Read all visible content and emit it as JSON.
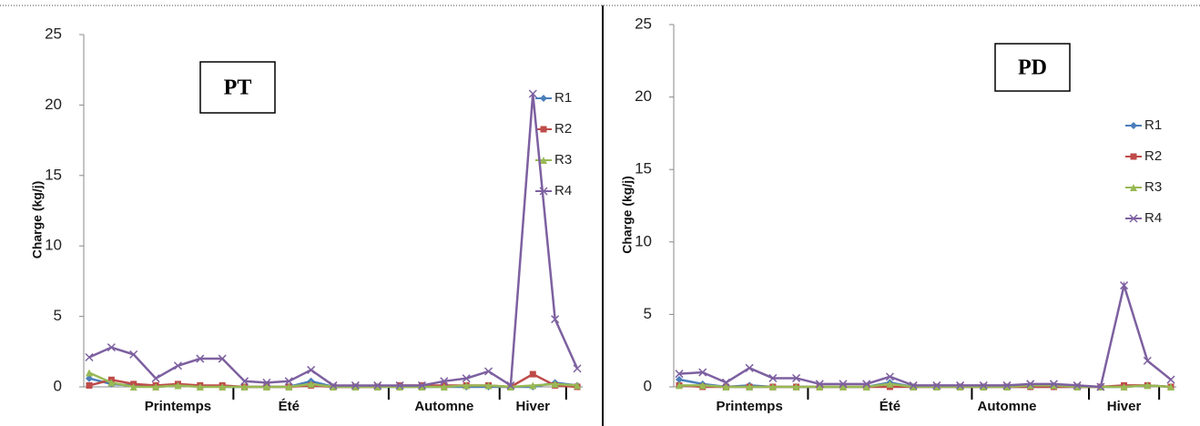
{
  "chart_data": [
    {
      "type": "line",
      "box_label": "PT",
      "y_label": "Charge (kg/j)",
      "categories": [
        null,
        null,
        null,
        null,
        "Printemps",
        null,
        null,
        null,
        null,
        "Été",
        null,
        null,
        null,
        null,
        null,
        null,
        "Automne",
        null,
        null,
        null,
        "Hiver",
        null,
        null
      ],
      "ylim": [
        0,
        25
      ],
      "yticks": [
        0,
        5,
        10,
        15,
        20,
        25
      ],
      "series": [
        {
          "name": "R1",
          "color": "#4a7ebb",
          "values": [
            0.6,
            0.2,
            0.1,
            0,
            0.1,
            0.1,
            0,
            0,
            0,
            0,
            0.4,
            0,
            0,
            0,
            0,
            0,
            0,
            0,
            0,
            0,
            0,
            0.3,
            0.1
          ]
        },
        {
          "name": "R2",
          "color": "#be4b48",
          "values": [
            0.1,
            0.5,
            0.2,
            0.1,
            0.2,
            0.1,
            0.1,
            0,
            0,
            0,
            0.1,
            0,
            0,
            0,
            0.1,
            0.1,
            0.1,
            0.1,
            0.1,
            0,
            0.9,
            0.1,
            0
          ]
        },
        {
          "name": "R3",
          "color": "#98b954",
          "values": [
            1.0,
            0.3,
            0,
            0,
            0.1,
            0,
            0,
            0,
            0,
            0,
            0.2,
            0,
            0,
            0,
            0,
            0,
            0,
            0.1,
            0.1,
            0,
            0.1,
            0.2,
            0.1
          ]
        },
        {
          "name": "R4",
          "color": "#7d60a0",
          "values": [
            2.1,
            2.8,
            2.3,
            0.6,
            1.5,
            2.0,
            2.0,
            0.4,
            0.3,
            0.4,
            1.2,
            0.1,
            0.1,
            0.1,
            0.1,
            0.1,
            0.4,
            0.6,
            1.1,
            0.1,
            20.8,
            4.8,
            1.3
          ]
        }
      ]
    },
    {
      "type": "line",
      "box_label": "PD",
      "y_label": "Charge (kg/j)",
      "categories": [
        null,
        null,
        null,
        "Printemps",
        null,
        null,
        null,
        null,
        null,
        "Été",
        null,
        null,
        null,
        null,
        "Automne",
        null,
        null,
        null,
        null,
        "Hiver",
        null,
        null
      ],
      "ylim": [
        0,
        25
      ],
      "yticks": [
        0,
        5,
        10,
        15,
        20,
        25
      ],
      "series": [
        {
          "name": "R1",
          "color": "#4a7ebb",
          "values": [
            0.5,
            0.2,
            0,
            0.1,
            0,
            0,
            0,
            0,
            0,
            0.3,
            0,
            0,
            0,
            0,
            0,
            0,
            0,
            0,
            0,
            0,
            0.1,
            0
          ]
        },
        {
          "name": "R2",
          "color": "#be4b48",
          "values": [
            0.1,
            0,
            0,
            0,
            0,
            0,
            0,
            0,
            0,
            0,
            0,
            0,
            0,
            0,
            0,
            0,
            0,
            0,
            0,
            0.1,
            0.1,
            0
          ]
        },
        {
          "name": "R3",
          "color": "#98b954",
          "values": [
            0.1,
            0.1,
            0,
            0,
            0,
            0,
            0,
            0,
            0,
            0.2,
            0,
            0,
            0,
            0,
            0,
            0.1,
            0.1,
            0,
            0,
            0,
            0.1,
            0
          ]
        },
        {
          "name": "R4",
          "color": "#7d60a0",
          "values": [
            0.9,
            1.0,
            0.3,
            1.3,
            0.6,
            0.6,
            0.2,
            0.2,
            0.2,
            0.7,
            0.1,
            0.1,
            0.1,
            0.1,
            0.1,
            0.2,
            0.2,
            0.1,
            0,
            7.0,
            1.8,
            0.5
          ]
        }
      ]
    }
  ]
}
